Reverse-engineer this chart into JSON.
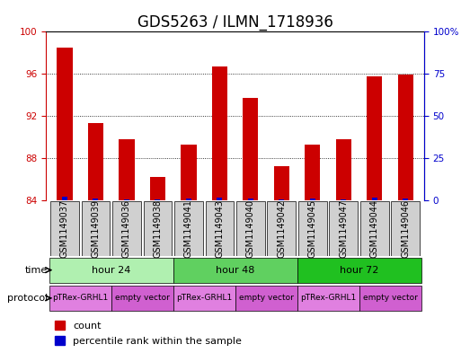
{
  "title": "GDS5263 / ILMN_1718936",
  "samples": [
    "GSM1149037",
    "GSM1149039",
    "GSM1149036",
    "GSM1149038",
    "GSM1149041",
    "GSM1149043",
    "GSM1149040",
    "GSM1149042",
    "GSM1149045",
    "GSM1149047",
    "GSM1149044",
    "GSM1149046"
  ],
  "red_values": [
    98.5,
    91.3,
    89.8,
    86.2,
    89.3,
    96.7,
    93.7,
    87.2,
    89.3,
    89.8,
    95.8,
    95.9
  ],
  "blue_values": [
    1.8,
    0.6,
    0.5,
    0.4,
    0.8,
    1.5,
    0.7,
    0.5,
    0.6,
    0.5,
    1.5,
    1.0
  ],
  "ylim_left": [
    84,
    100
  ],
  "ylim_right": [
    0,
    100
  ],
  "yticks_left": [
    84,
    88,
    92,
    96,
    100
  ],
  "yticks_right": [
    0,
    25,
    50,
    75,
    100
  ],
  "ytick_labels_left": [
    "84",
    "88",
    "92",
    "96",
    "100"
  ],
  "ytick_labels_right": [
    "0",
    "25",
    "50",
    "75",
    "100%"
  ],
  "time_groups": [
    {
      "label": "hour 24",
      "start": 0,
      "end": 4,
      "color": "#b0f0b0"
    },
    {
      "label": "hour 48",
      "start": 4,
      "end": 8,
      "color": "#60d060"
    },
    {
      "label": "hour 72",
      "start": 8,
      "end": 12,
      "color": "#20c020"
    }
  ],
  "protocol_groups": [
    {
      "label": "pTRex-GRHL1",
      "start": 0,
      "end": 2,
      "color": "#e080e0"
    },
    {
      "label": "empty vector",
      "start": 2,
      "end": 4,
      "color": "#d060d0"
    },
    {
      "label": "pTRex-GRHL1",
      "start": 4,
      "end": 6,
      "color": "#e080e0"
    },
    {
      "label": "empty vector",
      "start": 6,
      "end": 8,
      "color": "#d060d0"
    },
    {
      "label": "pTRex-GRHL1",
      "start": 8,
      "end": 10,
      "color": "#e080e0"
    },
    {
      "label": "empty vector",
      "start": 10,
      "end": 12,
      "color": "#d060d0"
    }
  ],
  "bar_color_red": "#cc0000",
  "bar_color_blue": "#0000cc",
  "bar_width": 0.5,
  "title_fontsize": 12,
  "label_fontsize": 8,
  "tick_fontsize": 7.5,
  "sample_label_fontsize": 7,
  "group_label_fontsize": 8,
  "legend_fontsize": 8,
  "left_tick_color": "#cc0000",
  "right_tick_color": "#0000cc",
  "background_color": "#ffffff",
  "plot_bg_color": "#ffffff",
  "grid_color": "#000000",
  "sample_box_color": "#d0d0d0"
}
